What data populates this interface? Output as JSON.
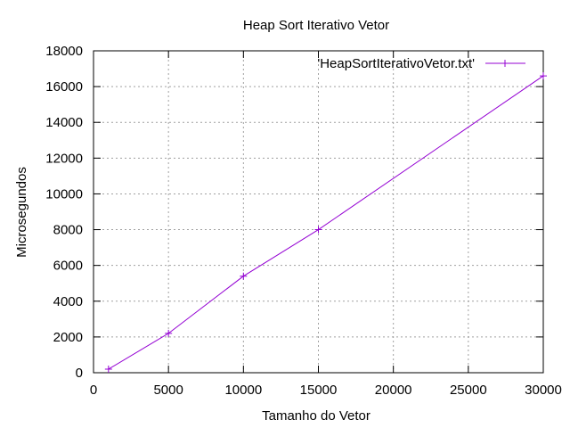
{
  "chart_data": {
    "type": "line",
    "title": "Heap Sort Iterativo Vetor",
    "xlabel": "Tamanho do Vetor",
    "ylabel": "Microsegundos",
    "xlim": [
      0,
      30000
    ],
    "ylim": [
      0,
      18000
    ],
    "xticks": [
      0,
      5000,
      10000,
      15000,
      20000,
      25000,
      30000
    ],
    "yticks": [
      0,
      2000,
      4000,
      6000,
      8000,
      10000,
      12000,
      14000,
      16000,
      18000
    ],
    "grid": true,
    "legend_position": "top-right",
    "series": [
      {
        "name": "'HeapSortIterativoVetor.txt'",
        "color": "#9400d3",
        "marker": "plus",
        "x": [
          1000,
          5000,
          10000,
          15000,
          30000
        ],
        "y": [
          200,
          2200,
          5400,
          8000,
          16600
        ]
      }
    ]
  }
}
